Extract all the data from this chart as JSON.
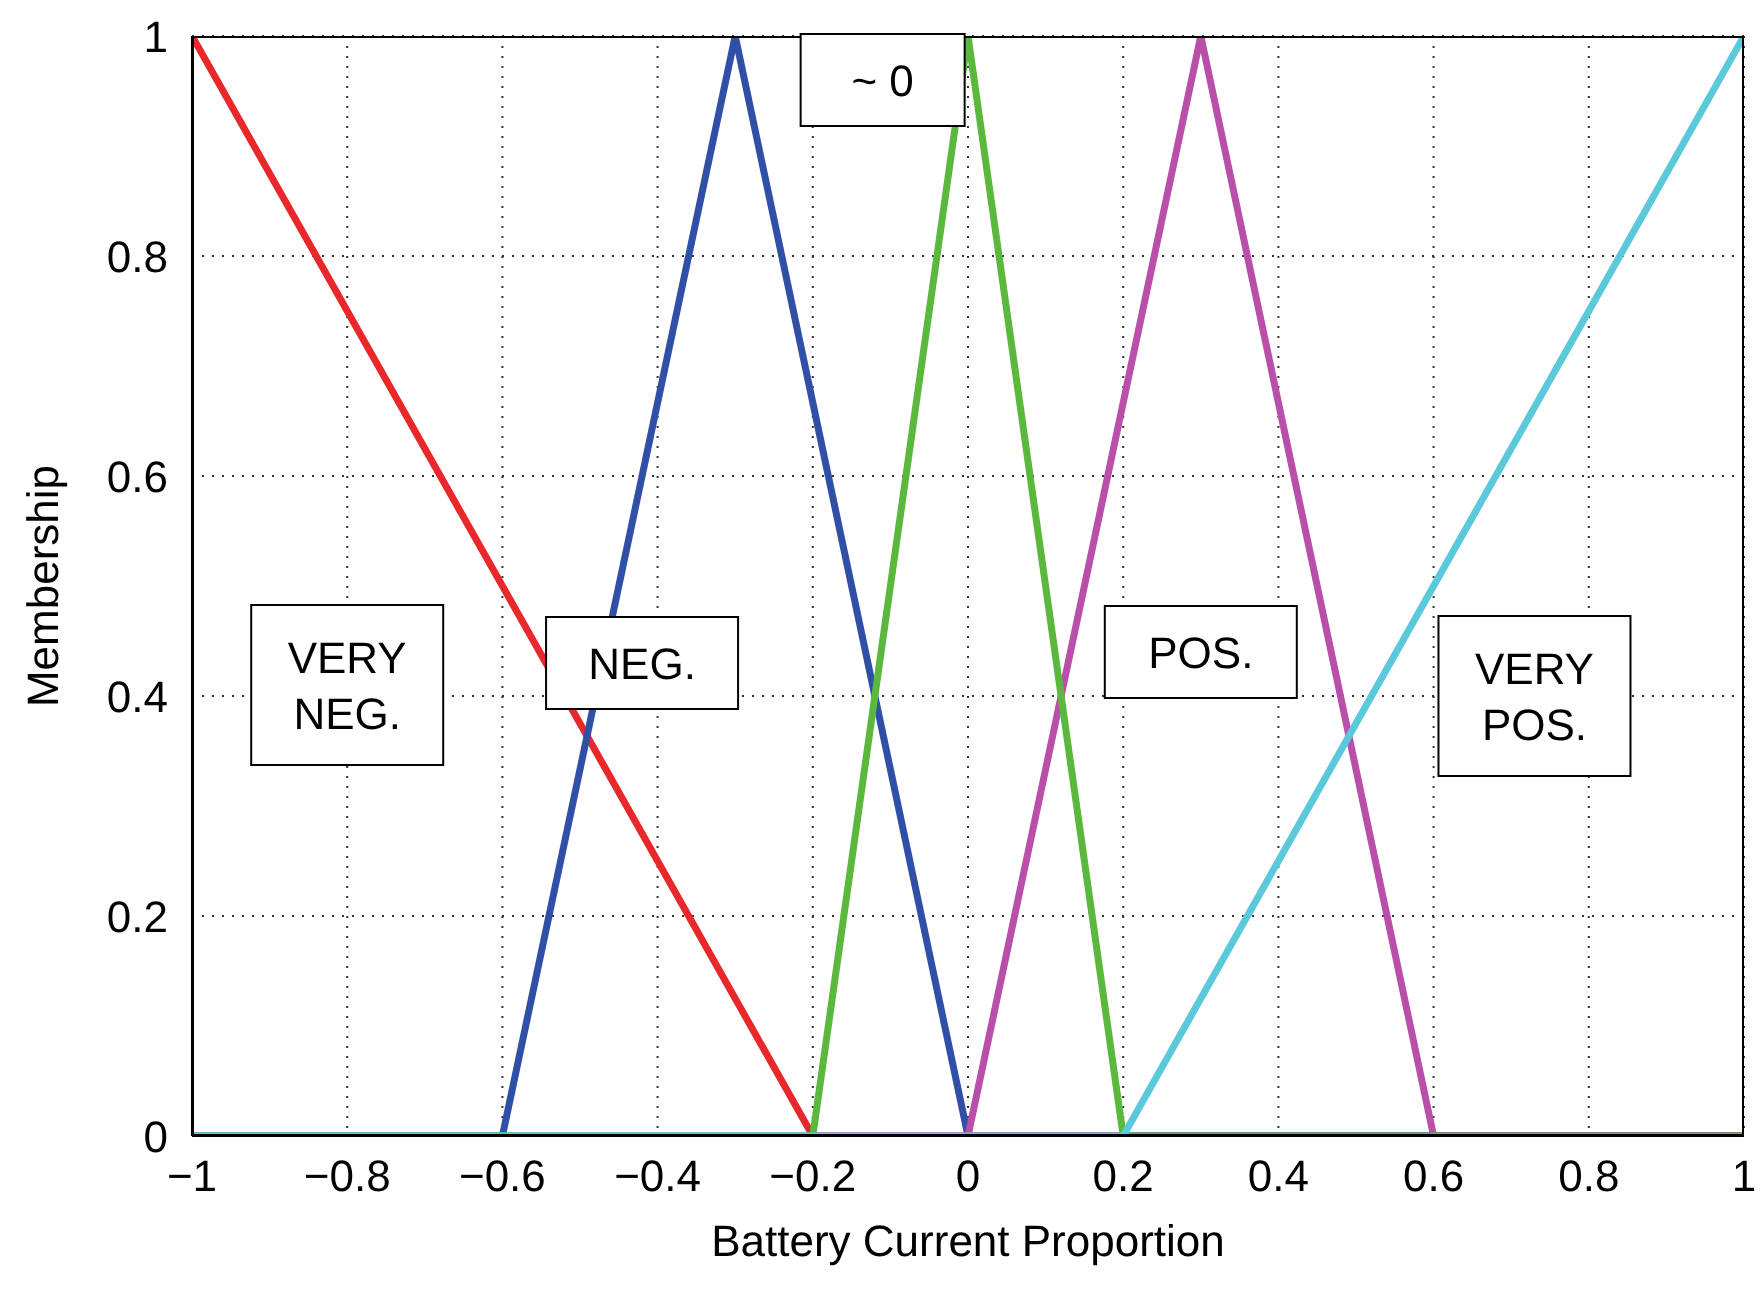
{
  "chart_data": {
    "type": "line",
    "xlabel": "Battery Current Proportion",
    "ylabel": "Membership",
    "series": [
      {
        "color": "#e8282a",
        "x": [
          -1,
          -0.2,
          1
        ],
        "values": [
          1,
          0,
          0
        ]
      },
      {
        "color": "#3050a8",
        "x": [
          -1,
          -0.6,
          -0.3,
          0,
          1
        ],
        "values": [
          0,
          0,
          1,
          0,
          0
        ]
      },
      {
        "color": "#b94fa8",
        "x": [
          -1,
          0,
          0.3,
          0.6,
          1
        ],
        "values": [
          0,
          0,
          1,
          0,
          0
        ]
      },
      {
        "color": "#5ab83c",
        "x": [
          -1,
          -0.2,
          0,
          0.2,
          1
        ],
        "values": [
          0,
          0,
          1,
          0,
          0
        ]
      },
      {
        "color": "#5bc8dc",
        "x": [
          -1,
          0.2,
          1
        ],
        "values": [
          0,
          0,
          1
        ]
      }
    ],
    "annotations": [
      "VERY\nNEG.",
      "NEG.",
      "~ 0",
      "POS.",
      "VERY\nPOS."
    ],
    "xlim": [
      -1,
      1
    ],
    "ylim": [
      0,
      1
    ],
    "xticks": [
      {
        "value": -1,
        "label": "−1"
      },
      {
        "value": -0.8,
        "label": "−0.8"
      },
      {
        "value": -0.6,
        "label": "−0.6"
      },
      {
        "value": -0.4,
        "label": "−0.4"
      },
      {
        "value": -0.2,
        "label": "−0.2"
      },
      0,
      0.2,
      0.4,
      0.6,
      0.8,
      1
    ],
    "yticks": [
      0,
      0.2,
      0.4,
      0.6,
      0.8,
      1
    ],
    "grid": true,
    "marker": "none",
    "line_style": "solid"
  }
}
